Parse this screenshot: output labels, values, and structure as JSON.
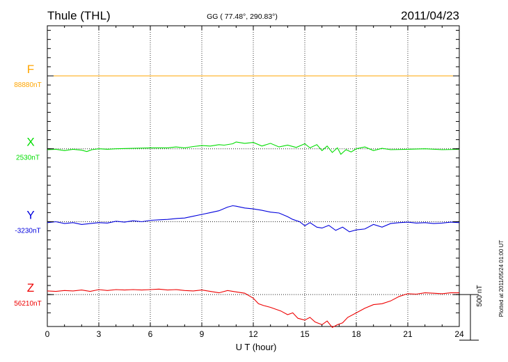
{
  "header": {
    "station": "Thule (THL)",
    "coords": "GG ( 77.48°, 290.83°)",
    "date": "2011/04/23"
  },
  "plotted_note": "Plotted at 2011/05/24 01:00 UT",
  "scale_bar_label": "500 nT",
  "colors": {
    "F": "#ffa500",
    "X": "#00dd00",
    "Y": "#0000dd",
    "Z": "#ee0000",
    "axis": "#000000"
  },
  "chart_data": {
    "type": "line",
    "title": "Thule (THL)",
    "xlabel": "U T (hour)",
    "ylabel": "",
    "xlim": [
      0,
      24
    ],
    "xticks": [
      0,
      3,
      6,
      9,
      12,
      15,
      18,
      21,
      24
    ],
    "ylim_nT": [
      -150,
      3150
    ],
    "scale_bar_nT": 500,
    "series": [
      {
        "name": "F",
        "baseline_label": "88880nT",
        "offset_nT": 2600,
        "x": [
          0,
          6,
          12,
          18,
          24
        ],
        "values": [
          0,
          0,
          0,
          0,
          0
        ]
      },
      {
        "name": "X",
        "baseline_label": "2530nT",
        "offset_nT": 1800,
        "x": [
          0,
          0.5,
          1,
          1.5,
          2,
          2.3,
          2.6,
          3,
          3.5,
          4,
          5,
          6,
          7,
          7.5,
          8,
          8.5,
          9,
          9.5,
          10,
          10.3,
          10.8,
          11,
          11.5,
          12,
          12.5,
          13,
          13.5,
          14,
          14.5,
          15,
          15.3,
          15.7,
          16,
          16.3,
          16.6,
          16.9,
          17.1,
          17.4,
          17.7,
          18,
          18.5,
          19,
          19.5,
          20,
          21,
          22,
          23,
          24
        ],
        "values": [
          -10,
          -5,
          -20,
          -5,
          -15,
          -30,
          -10,
          0,
          -5,
          0,
          5,
          10,
          10,
          20,
          10,
          25,
          35,
          30,
          45,
          40,
          55,
          75,
          60,
          70,
          30,
          60,
          20,
          40,
          15,
          55,
          10,
          45,
          -20,
          30,
          -40,
          10,
          -60,
          -10,
          -35,
          0,
          20,
          -20,
          5,
          -10,
          -5,
          0,
          -10,
          -5
        ]
      },
      {
        "name": "Y",
        "baseline_label": "-3230nT",
        "offset_nT": 1000,
        "x": [
          0,
          0.5,
          1,
          1.5,
          2,
          2.5,
          3,
          3.5,
          4,
          4.5,
          5,
          5.5,
          6,
          6.5,
          7,
          7.5,
          8,
          8.5,
          9,
          9.5,
          10,
          10.5,
          10.8,
          11,
          11.5,
          12,
          12.5,
          13,
          13.5,
          14,
          14.3,
          14.7,
          15,
          15.3,
          15.7,
          16,
          16.4,
          16.8,
          17.2,
          17.6,
          18,
          18.5,
          19,
          19.5,
          20,
          20.5,
          21,
          21.5,
          22,
          22.5,
          23,
          23.5,
          24
        ],
        "values": [
          -10,
          0,
          -20,
          -10,
          -30,
          -20,
          -10,
          -15,
          5,
          -5,
          10,
          0,
          15,
          20,
          25,
          35,
          40,
          60,
          80,
          100,
          120,
          160,
          175,
          170,
          150,
          140,
          125,
          105,
          95,
          55,
          25,
          0,
          -45,
          -10,
          -60,
          -70,
          -40,
          -95,
          -60,
          -110,
          -90,
          -80,
          -30,
          -60,
          -20,
          -10,
          -5,
          -15,
          -10,
          -20,
          -15,
          -5,
          -10
        ]
      },
      {
        "name": "Z",
        "baseline_label": "56210nT",
        "offset_nT": 200,
        "x": [
          0,
          0.5,
          1,
          1.5,
          2,
          2.5,
          3,
          3.5,
          4,
          4.5,
          5,
          5.5,
          6,
          6.5,
          7,
          7.5,
          8,
          8.5,
          9,
          9.5,
          10,
          10.5,
          11,
          11.5,
          12,
          12.3,
          12.6,
          13,
          13.3,
          13.6,
          14,
          14.3,
          14.6,
          15,
          15.3,
          15.6,
          16,
          16.3,
          16.6,
          16.9,
          17.2,
          17.5,
          18,
          18.5,
          19,
          19.5,
          20,
          20.5,
          21,
          21.5,
          22,
          22.5,
          23,
          23.5,
          24
        ],
        "values": [
          40,
          35,
          45,
          40,
          50,
          35,
          55,
          45,
          55,
          50,
          55,
          50,
          55,
          60,
          50,
          55,
          45,
          40,
          50,
          35,
          20,
          45,
          30,
          15,
          -40,
          -100,
          -120,
          -140,
          -160,
          -180,
          -220,
          -200,
          -260,
          -280,
          -250,
          -300,
          -330,
          -290,
          -360,
          -330,
          -310,
          -250,
          -200,
          -150,
          -110,
          -100,
          -70,
          -20,
          10,
          5,
          20,
          15,
          10,
          20,
          20
        ]
      }
    ]
  }
}
